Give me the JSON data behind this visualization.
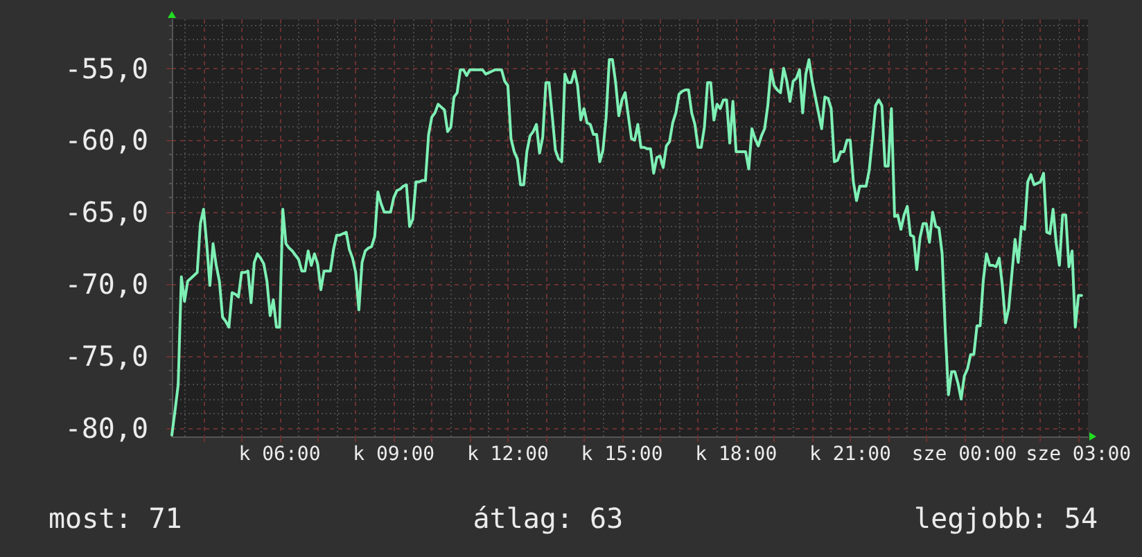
{
  "chart_data": {
    "type": "line",
    "color": "#7ef0b5",
    "categories": [
      null,
      null,
      null,
      null,
      null,
      null,
      null,
      null,
      null,
      null,
      null,
      null,
      null,
      null,
      null,
      null,
      null,
      null,
      null,
      null,
      null,
      null,
      null,
      null,
      null,
      null,
      null,
      null,
      null,
      null,
      null,
      null,
      null,
      null,
      "k 06:00",
      null,
      null,
      null,
      null,
      null,
      null,
      null,
      null,
      null,
      null,
      null,
      null,
      null,
      null,
      null,
      null,
      null,
      null,
      null,
      null,
      null,
      null,
      null,
      null,
      null,
      null,
      null,
      null,
      null,
      null,
      null,
      null,
      null,
      null,
      null,
      "k 09:00",
      null,
      null,
      null,
      null,
      null,
      null,
      null,
      null,
      null,
      null,
      null,
      null,
      null,
      null,
      null,
      null,
      null,
      null,
      null,
      null,
      null,
      null,
      null,
      null,
      null,
      null,
      null,
      null,
      null,
      null,
      null,
      null,
      null,
      null,
      null,
      "k 12:00",
      null,
      null,
      null,
      null,
      null,
      null,
      null,
      null,
      null,
      null,
      null,
      null,
      null,
      null,
      null,
      null,
      null,
      null,
      null,
      null,
      null,
      null,
      null,
      null,
      null,
      null,
      null,
      null,
      null,
      null,
      null,
      null,
      null,
      null,
      null,
      "k 15:00",
      null,
      null,
      null,
      null,
      null,
      null,
      null,
      null,
      null,
      null,
      null,
      null,
      null,
      null,
      null,
      null,
      null,
      null,
      null,
      null,
      null,
      null,
      null,
      null,
      null,
      null,
      null,
      null,
      null,
      null,
      null,
      null,
      null,
      null,
      null,
      "k 18:00",
      null,
      null,
      null,
      null,
      null,
      null,
      null,
      null,
      null,
      null,
      null,
      null,
      null,
      null,
      null,
      null,
      null,
      null,
      null,
      null,
      null,
      null,
      null,
      null,
      null,
      null,
      null,
      null,
      null,
      null,
      null,
      null,
      null,
      null,
      null,
      "k 21:00",
      null,
      null,
      null,
      null,
      null,
      null,
      null,
      null,
      null,
      null,
      null,
      null,
      null,
      null,
      null,
      null,
      null,
      null,
      null,
      null,
      null,
      null,
      null,
      null,
      null,
      null,
      null,
      null,
      null,
      null,
      null,
      null,
      null,
      null,
      null,
      "sze 00:00",
      null,
      null,
      null,
      null,
      null,
      null,
      null,
      null,
      null,
      null,
      null,
      null,
      null,
      null,
      null,
      null,
      null,
      null,
      null,
      null,
      null,
      null,
      null,
      null,
      null,
      null,
      null,
      null,
      null,
      null,
      null,
      null,
      null,
      null,
      null,
      "sze 03:00",
      null,
      null,
      null
    ],
    "values": [
      -80.5,
      -78.8,
      -77.0,
      -69.5,
      -71.2,
      -69.8,
      -69.6,
      -69.4,
      -69.2,
      -65.8,
      -64.8,
      -67.2,
      -70.1,
      -67.2,
      -68.7,
      -69.8,
      -72.3,
      -72.6,
      -73.0,
      -70.6,
      -70.7,
      -70.9,
      -69.2,
      -69.2,
      -69.1,
      -71.3,
      -68.5,
      -67.9,
      -68.2,
      -68.6,
      -69.8,
      -72.2,
      -71.1,
      -73.0,
      -73.0,
      -64.8,
      -67.2,
      -67.5,
      -67.7,
      -68.0,
      -68.3,
      -69.1,
      -69.1,
      -67.7,
      -68.7,
      -67.9,
      -68.6,
      -70.4,
      -69.1,
      -69.1,
      -69.1,
      -67.6,
      -66.6,
      -66.6,
      -66.5,
      -66.4,
      -67.6,
      -68.2,
      -69.2,
      -71.8,
      -68.5,
      -67.7,
      -67.5,
      -67.4,
      -66.7,
      -63.6,
      -64.4,
      -65.0,
      -65.0,
      -65.0,
      -64.0,
      -63.5,
      -63.4,
      -63.2,
      -63.1,
      -66.0,
      -65.5,
      -62.9,
      -62.9,
      -62.8,
      -62.8,
      -59.6,
      -58.4,
      -58.1,
      -57.5,
      -57.7,
      -57.9,
      -59.4,
      -59.1,
      -57.0,
      -56.7,
      -55.1,
      -55.1,
      -55.5,
      -55.1,
      -55.1,
      -55.1,
      -55.1,
      -55.1,
      -55.4,
      -55.3,
      -55.2,
      -55.1,
      -55.1,
      -55.1,
      -55.9,
      -56.2,
      -59.9,
      -60.8,
      -61.3,
      -63.1,
      -63.1,
      -60.8,
      -59.7,
      -59.4,
      -58.9,
      -60.9,
      -59.8,
      -56.0,
      -56.0,
      -58.3,
      -60.7,
      -61.3,
      -61.5,
      -55.4,
      -56.0,
      -56.0,
      -55.2,
      -56.2,
      -58.6,
      -57.8,
      -58.8,
      -58.9,
      -59.6,
      -59.6,
      -61.5,
      -60.7,
      -58.4,
      -54.4,
      -54.4,
      -56.0,
      -58.3,
      -57.2,
      -56.7,
      -58.3,
      -59.9,
      -60.0,
      -58.9,
      -60.5,
      -60.5,
      -60.6,
      -60.6,
      -62.3,
      -61.2,
      -61.1,
      -61.9,
      -60.4,
      -60.1,
      -58.8,
      -58.1,
      -56.8,
      -56.6,
      -56.5,
      -56.5,
      -58.1,
      -58.9,
      -60.5,
      -60.5,
      -59.1,
      -56.0,
      -56.0,
      -58.6,
      -57.5,
      -57.8,
      -57.2,
      -57.2,
      -60.2,
      -57.3,
      -60.8,
      -60.8,
      -60.8,
      -60.8,
      -62.0,
      -59.2,
      -59.9,
      -60.4,
      -59.7,
      -59.2,
      -57.6,
      -55.1,
      -56.2,
      -56.5,
      -56.7,
      -55.0,
      -55.9,
      -57.3,
      -55.9,
      -55.7,
      -55.1,
      -58.1,
      -55.4,
      -54.4,
      -55.9,
      -57.0,
      -58.1,
      -59.2,
      -57.0,
      -57.1,
      -57.8,
      -61.5,
      -61.4,
      -60.8,
      -60.8,
      -60.0,
      -60.0,
      -62.9,
      -64.2,
      -63.2,
      -63.2,
      -63.2,
      -62.1,
      -59.9,
      -57.6,
      -57.2,
      -57.6,
      -61.8,
      -61.8,
      -57.8,
      -65.3,
      -65.2,
      -66.2,
      -65.2,
      -64.6,
      -66.6,
      -66.7,
      -69.0,
      -66.8,
      -65.8,
      -65.8,
      -67.1,
      -65.0,
      -66.0,
      -66.1,
      -67.9,
      -73.3,
      -77.7,
      -76.1,
      -76.1,
      -76.9,
      -78.0,
      -76.4,
      -75.9,
      -74.9,
      -74.9,
      -72.9,
      -72.9,
      -69.7,
      -67.9,
      -68.7,
      -68.7,
      -68.8,
      -68.2,
      -70.1,
      -72.7,
      -71.7,
      -69.3,
      -66.9,
      -68.5,
      -66.0,
      -66.2,
      -62.9,
      -62.4,
      -63.1,
      -63.0,
      -62.9,
      -62.3,
      -66.4,
      -66.5,
      -64.8,
      -67.2,
      -68.7,
      -65.2,
      -65.2,
      -68.8,
      -67.7,
      -73.0,
      -70.8,
      -70.8,
      null,
      null
    ],
    "ylim": [
      -80.6,
      -51.6
    ],
    "yticks": [
      {
        "value": -80,
        "label": "-80,0"
      },
      {
        "value": -79,
        "label": null
      },
      {
        "value": -78,
        "label": null
      },
      {
        "value": -77,
        "label": null
      },
      {
        "value": -76,
        "label": null
      },
      {
        "value": -75,
        "label": "-75,0"
      },
      {
        "value": -74,
        "label": null
      },
      {
        "value": -73,
        "label": null
      },
      {
        "value": -72,
        "label": null
      },
      {
        "value": -71,
        "label": null
      },
      {
        "value": -70,
        "label": "-70,0"
      },
      {
        "value": -69,
        "label": null
      },
      {
        "value": -68,
        "label": null
      },
      {
        "value": -67,
        "label": null
      },
      {
        "value": -66,
        "label": null
      },
      {
        "value": -65,
        "label": "-65,0"
      },
      {
        "value": -64,
        "label": null
      },
      {
        "value": -63,
        "label": null
      },
      {
        "value": -62,
        "label": null
      },
      {
        "value": -61,
        "label": null
      },
      {
        "value": -60,
        "label": "-60,0"
      },
      {
        "value": -59,
        "label": null
      },
      {
        "value": -58,
        "label": null
      },
      {
        "value": -57,
        "label": null
      },
      {
        "value": -56,
        "label": null
      },
      {
        "value": -55,
        "label": "-55,0"
      },
      {
        "value": -54,
        "label": null
      },
      {
        "value": -53,
        "label": null
      },
      {
        "value": -52,
        "label": null
      }
    ],
    "grid": true,
    "annotations": [
      "most: 71",
      "átlag: 63",
      "legjobb: 54"
    ]
  }
}
